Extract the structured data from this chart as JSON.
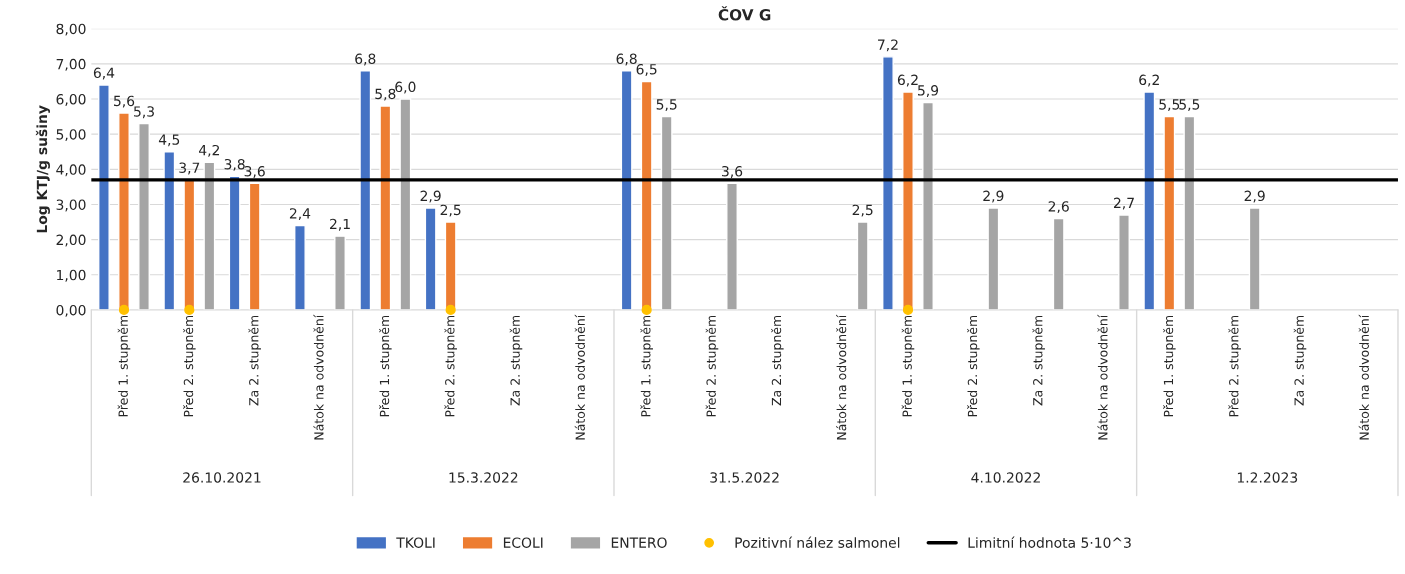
{
  "chart_data": {
    "type": "bar",
    "title": "ČOV G",
    "ylabel": "Log KTJ/g sušiny",
    "categories": [
      "Před 1. stupněm",
      "Před 2. stupněm",
      "Za 2. stupněm",
      "Nátok na odvodnění",
      "Před 1. stupněm",
      "Před 2. stupněm",
      "Za 2. stupněm",
      "Nátok na odvodnění",
      "Před 1. stupněm",
      "Před 2. stupněm",
      "Za 2. stupněm",
      "Nátok na odvodnění",
      "Před 1. stupněm",
      "Před 2. stupněm",
      "Za 2. stupněm",
      "Nátok na odvodnění",
      "Před 1. stupněm",
      "Před 2. stupněm",
      "Za 2. stupněm",
      "Nátok na odvodnění"
    ],
    "annotations": [
      "26.10.2021",
      "15.3.2022",
      "31.5.2022",
      "4.10.2022",
      "1.2.2023"
    ],
    "series": [
      {
        "name": "TKOLI",
        "color": "#4472c4",
        "values": [
          6.4,
          4.5,
          3.8,
          2.4,
          6.8,
          2.9,
          null,
          null,
          6.8,
          null,
          null,
          null,
          7.2,
          null,
          null,
          null,
          6.2,
          null,
          null,
          null
        ],
        "value_labels": [
          "6,4",
          "4,5",
          "3,8",
          "2,4",
          "6,8",
          "2,9",
          null,
          null,
          "6,8",
          null,
          null,
          null,
          "7,2",
          null,
          null,
          null,
          "6,2",
          null,
          null,
          null
        ]
      },
      {
        "name": "ECOLI",
        "color": "#ed7d31",
        "values": [
          5.6,
          3.7,
          3.6,
          null,
          5.8,
          2.5,
          null,
          null,
          6.5,
          null,
          null,
          null,
          6.2,
          null,
          null,
          null,
          5.5,
          null,
          null,
          null
        ],
        "value_labels": [
          "5,6",
          "3,7",
          "3,6",
          null,
          "5,8",
          "2,5",
          null,
          null,
          "6,5",
          null,
          null,
          null,
          "6,2",
          null,
          null,
          null,
          "5,5",
          null,
          null,
          null
        ]
      },
      {
        "name": "ENTERO",
        "color": "#a5a5a5",
        "values": [
          5.3,
          4.2,
          null,
          2.1,
          6.0,
          null,
          null,
          null,
          5.5,
          3.6,
          null,
          2.5,
          5.9,
          2.9,
          2.6,
          2.7,
          5.5,
          2.9,
          null,
          null
        ],
        "value_labels": [
          "5,3",
          "4,2",
          null,
          "2,1",
          "6,0",
          null,
          null,
          null,
          "5,5",
          "3,6",
          null,
          "2,5",
          "5,9",
          "2,9",
          "2,6",
          "2,7",
          "5,5",
          "2,9",
          null,
          null
        ]
      },
      {
        "name": "Pozitivní nález salmonel",
        "type": "scatter",
        "color": "#ffc000",
        "marker": "circle",
        "values": [
          0,
          0,
          null,
          null,
          null,
          0,
          null,
          null,
          0,
          null,
          null,
          null,
          0,
          null,
          null,
          null,
          null,
          null,
          null,
          null
        ]
      }
    ],
    "ref_lines": [
      {
        "axis": "y",
        "value": 3.7,
        "label": "Limitní hodnota 5·10^3",
        "color": "#000000",
        "line_style": "solid"
      }
    ],
    "ylim": [
      0,
      8
    ],
    "yticks": [
      {
        "value": 0,
        "label": "0,00"
      },
      {
        "value": 1,
        "label": "1,00"
      },
      {
        "value": 2,
        "label": "2,00"
      },
      {
        "value": 3,
        "label": "3,00"
      },
      {
        "value": 4,
        "label": "4,00"
      },
      {
        "value": 5,
        "label": "5,00"
      },
      {
        "value": 6,
        "label": "6,00"
      },
      {
        "value": 7,
        "label": "7,00"
      },
      {
        "value": 8,
        "label": "8,00"
      }
    ],
    "grid": "y",
    "legend": "bottom"
  }
}
